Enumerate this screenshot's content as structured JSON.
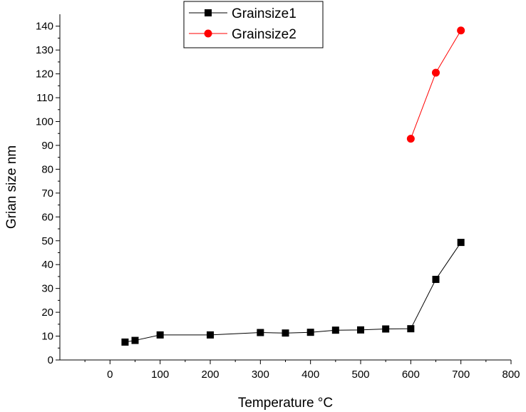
{
  "chart_data": {
    "type": "line",
    "xlabel": "Temperature °C",
    "ylabel": "Grian size nm",
    "xlim": [
      -100,
      800
    ],
    "ylim": [
      0,
      145
    ],
    "xticks": [
      0,
      100,
      200,
      300,
      400,
      500,
      600,
      700,
      800
    ],
    "yticks": [
      0,
      10,
      20,
      30,
      40,
      50,
      60,
      70,
      80,
      90,
      100,
      110,
      120,
      130,
      140
    ],
    "grid": false,
    "legend_position": "top-center",
    "series": [
      {
        "name": "Grainsize1",
        "color": "#000000",
        "marker": "square",
        "x": [
          30,
          50,
          100,
          200,
          300,
          350,
          400,
          450,
          500,
          550,
          600,
          650,
          700
        ],
        "y": [
          7.5,
          8.2,
          10.5,
          10.5,
          11.5,
          11.3,
          11.6,
          12.5,
          12.6,
          13.0,
          13.1,
          33.8,
          49.3
        ]
      },
      {
        "name": "Grainsize2",
        "color": "#ff0000",
        "marker": "circle",
        "x": [
          600,
          650,
          700
        ],
        "y": [
          92.8,
          120.5,
          138.2
        ]
      }
    ]
  }
}
